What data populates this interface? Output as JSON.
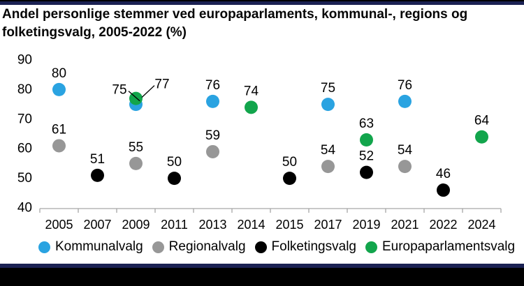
{
  "title": "Andel personlige stemmer ved europaparlaments, kommunal-, regions og folketingsvalg, 2005-2022 (%)",
  "colors": {
    "accent_bar": "#1b2153",
    "axis": "#a6a6a6",
    "text": "#000000",
    "kommunalvalg": "#2aa3e1",
    "regionalvalg": "#979797",
    "folketingsvalg": "#000000",
    "europaparlamentsvalg": "#12a54c"
  },
  "chart_data": {
    "type": "scatter",
    "title": "Andel personlige stemmer ved europaparlaments, kommunal-, regions og folketingsvalg, 2005-2022 (%)",
    "categories": [
      "2005",
      "2007",
      "2009",
      "2011",
      "2013",
      "2014",
      "2015",
      "2017",
      "2019",
      "2021",
      "2022",
      "2024"
    ],
    "ylim": [
      40,
      90
    ],
    "yticks": [
      90,
      80,
      70,
      60,
      50,
      40
    ],
    "grid": false,
    "legend_position": "bottom",
    "series": [
      {
        "name": "Kommunalvalg",
        "color": "#2aa3e1",
        "points": {
          "2005": 80,
          "2009": 75,
          "2013": 76,
          "2017": 75,
          "2021": 76
        }
      },
      {
        "name": "Regionalvalg",
        "color": "#979797",
        "points": {
          "2005": 61,
          "2009": 55,
          "2013": 59,
          "2017": 54,
          "2021": 54
        }
      },
      {
        "name": "Folketingsvalg",
        "color": "#000000",
        "points": {
          "2007": 51,
          "2011": 50,
          "2015": 50,
          "2019": 52,
          "2022": 46
        }
      },
      {
        "name": "Europaparlamentsvalg",
        "color": "#12a54c",
        "points": {
          "2009": 77,
          "2014": 74,
          "2019": 63,
          "2024": 64
        }
      }
    ],
    "callouts": [
      {
        "series": "Kommunalvalg",
        "category": "2009",
        "label": "75",
        "side": "left"
      },
      {
        "series": "Europaparlamentsvalg",
        "category": "2009",
        "label": "77",
        "side": "right"
      }
    ]
  }
}
